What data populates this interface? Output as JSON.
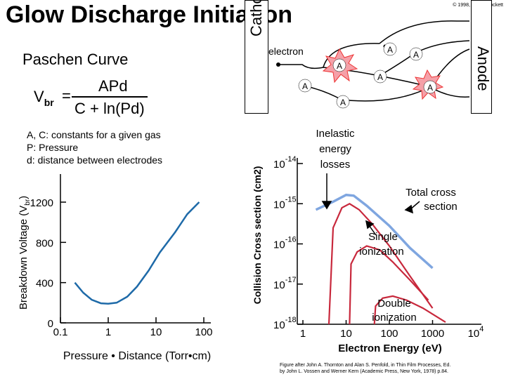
{
  "title": "Glow Discharge Initiation",
  "copyright": "© 1998, Angus Rockett",
  "paschen": {
    "heading": "Paschen Curve",
    "vbr_symbol": "V",
    "vbr_subscript": "br",
    "equals": "=",
    "numerator": "APd",
    "denominator": "C + ln(Pd)",
    "definitions": [
      "A, C: constants for a given gas",
      "P: Pressure",
      "d: distance between electrodes"
    ]
  },
  "electrodes": {
    "cathode_label": "Cathode",
    "anode_label": "Anode",
    "electron_label": "electron",
    "atom_label": "A"
  },
  "chart_data": [
    {
      "type": "line",
      "title": "",
      "xlabel": "Pressure • Distance (Torr•cm)",
      "ylabel_main": "Breakdown Voltage (V",
      "ylabel_sub": "br",
      "ylabel_close": ")",
      "xscale": "log",
      "x_tick_labels": [
        "0.1",
        "1",
        "10",
        "100"
      ],
      "x_ticks": [
        0.1,
        1,
        10,
        100
      ],
      "y_tick_labels": [
        "0",
        "400",
        "800",
        "1200"
      ],
      "y_ticks": [
        0,
        400,
        800,
        1200
      ],
      "xlim": [
        0.1,
        100
      ],
      "ylim": [
        0,
        1200
      ],
      "color": "#1e6aa8",
      "series": [
        {
          "x": [
            0.2,
            0.3,
            0.45,
            0.7,
            1.0,
            1.5,
            2.5,
            4,
            7,
            12,
            25,
            45,
            80
          ],
          "y": [
            400,
            300,
            230,
            195,
            190,
            200,
            260,
            360,
            520,
            700,
            900,
            1080,
            1200
          ]
        }
      ]
    },
    {
      "type": "line",
      "title": "",
      "xlabel": "Electron Energy (eV)",
      "ylabel": "Collision Cross section (cm2)",
      "xscale": "log",
      "yscale": "log",
      "x_tick_labels": [
        "1",
        "10",
        "100",
        "1000"
      ],
      "x_ticks": [
        1,
        10,
        100,
        1000
      ],
      "x_last_base": "10",
      "x_last_exp": "4",
      "y_tick_base": "10",
      "y_tick_exps": [
        "-14",
        "-15",
        "-16",
        "-17",
        "-18"
      ],
      "y_ticks": [
        -14,
        -15,
        -16,
        -17,
        -18
      ],
      "xlim": [
        1,
        10000
      ],
      "ylim": [
        -18,
        -14
      ],
      "annotations": {
        "inelastic": [
          "Inelastic",
          "energy",
          "losses"
        ],
        "total": [
          "Total cross",
          "section"
        ],
        "single": [
          "Single",
          "ionization"
        ],
        "double": [
          "Double",
          "ionization"
        ]
      },
      "series": [
        {
          "label": "Total cross section",
          "color": "#7fa6e0",
          "x": [
            2,
            5,
            10,
            15,
            30,
            100,
            300,
            1000
          ],
          "log_y": [
            -15.15,
            -14.95,
            -14.78,
            -14.8,
            -15.05,
            -15.55,
            -16.1,
            -16.6
          ]
        },
        {
          "label": "Inelastic energy losses",
          "color": "#c8283c",
          "x": [
            4,
            5,
            8,
            12,
            20,
            40,
            100,
            300,
            1000
          ],
          "log_y": [
            -18,
            -15.6,
            -15.1,
            -15.0,
            -15.15,
            -15.5,
            -16.05,
            -16.8,
            -17.6
          ]
        },
        {
          "label": "Single ionization",
          "color": "#c8283c",
          "x": [
            12,
            13,
            18,
            30,
            60,
            120,
            300,
            800
          ],
          "log_y": [
            -18,
            -16.5,
            -16.2,
            -16.05,
            -16.15,
            -16.45,
            -16.9,
            -17.4
          ]
        },
        {
          "label": "Double ionization",
          "color": "#c8283c",
          "x": [
            45,
            48,
            70,
            120,
            250,
            600,
            2000
          ],
          "log_y": [
            -18,
            -17.55,
            -17.35,
            -17.3,
            -17.4,
            -17.6,
            -17.95
          ]
        }
      ]
    }
  ],
  "caption": [
    "Figure after John A. Thornton and Alan S. Penfold, in Thin Film Processes, Ed.",
    "by John L. Vossen and Werner Kern (Academic Press, New York, 1978) p.84."
  ]
}
